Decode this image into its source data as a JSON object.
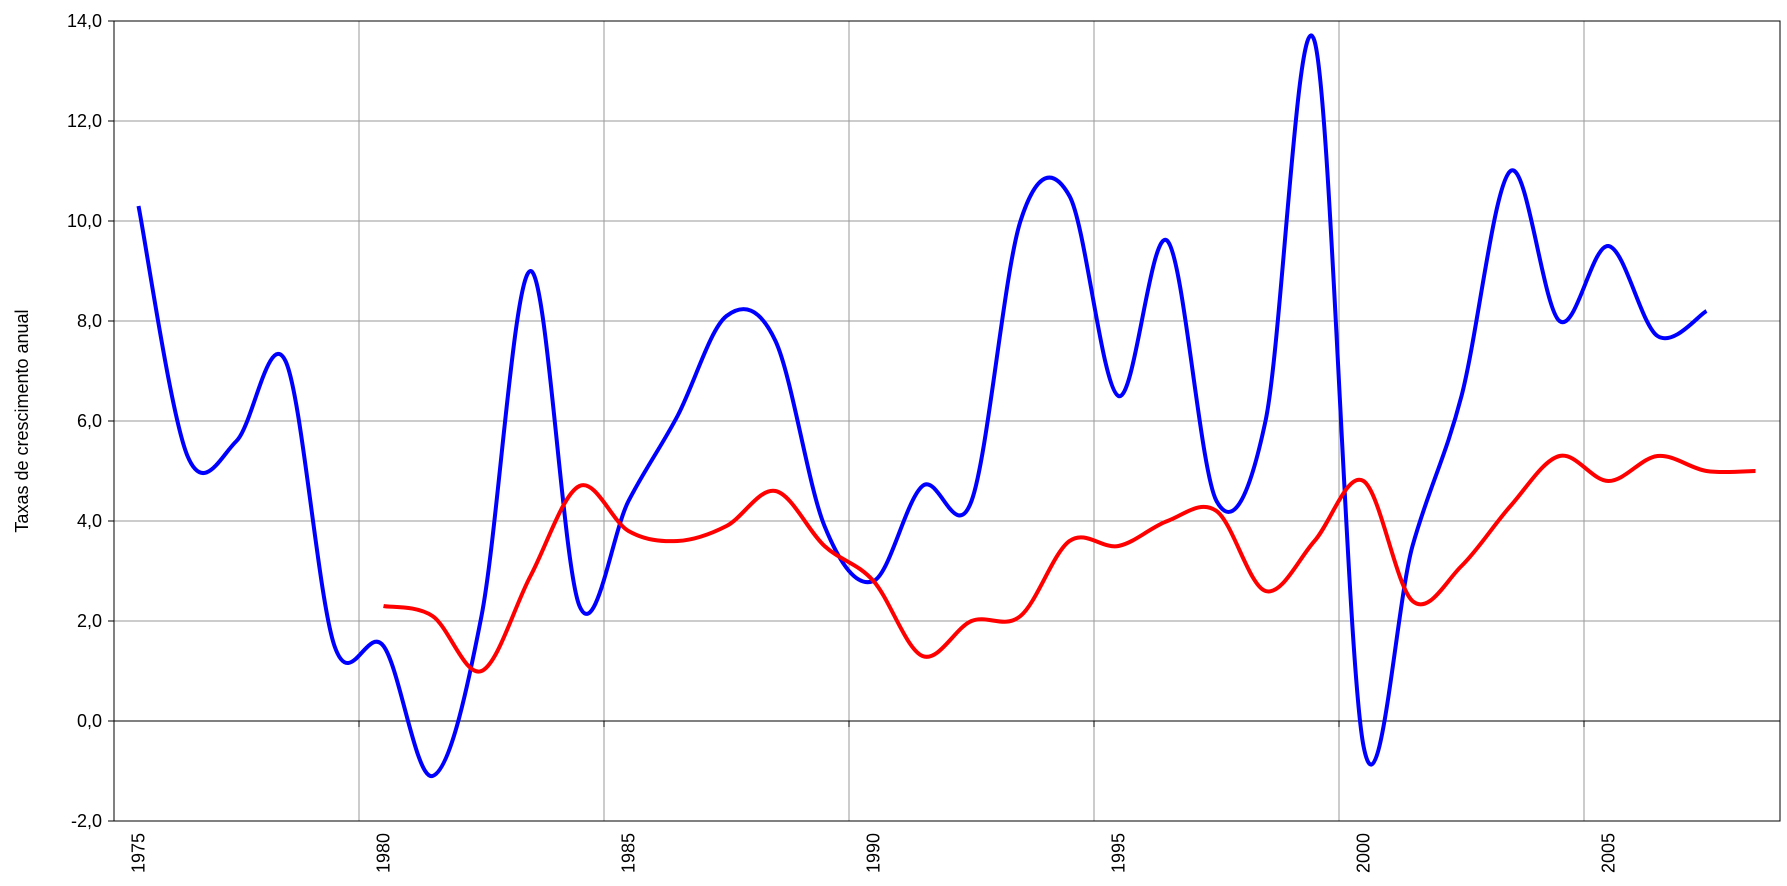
{
  "chart_data": {
    "type": "line",
    "y_label": "Taxas de crescimento anual",
    "categories": [
      "1975",
      null,
      null,
      null,
      null,
      "1980",
      null,
      null,
      null,
      null,
      "1985",
      null,
      null,
      null,
      null,
      "1990",
      null,
      null,
      null,
      null,
      "1995",
      null,
      null,
      null,
      null,
      "2000",
      null,
      null,
      null,
      null,
      "2005",
      null,
      null,
      null
    ],
    "series": [
      {
        "color": "#0000ff",
        "values": [
          10.3,
          5.3,
          5.6,
          7.2,
          1.5,
          1.5,
          -1.1,
          2.1,
          9.0,
          2.3,
          4.4,
          6.1,
          8.1,
          7.6,
          3.9,
          2.8,
          4.7,
          4.4,
          10.0,
          10.5,
          6.5,
          9.6,
          4.4,
          6.0,
          13.6,
          -0.5,
          3.5,
          6.5,
          11.0,
          8.0,
          9.5,
          7.7,
          8.2,
          null
        ]
      },
      {
        "color": "#ff0000",
        "values": [
          null,
          null,
          null,
          null,
          null,
          2.3,
          2.1,
          1.0,
          2.9,
          4.7,
          3.8,
          3.6,
          3.9,
          4.6,
          3.5,
          2.8,
          1.3,
          2.0,
          2.1,
          3.6,
          3.5,
          4.0,
          4.2,
          2.6,
          3.6,
          4.8,
          2.4,
          3.1,
          4.3,
          5.3,
          4.8,
          5.3,
          5.0,
          5.0
        ]
      }
    ],
    "ylim": [
      -2,
      14
    ],
    "yticks": [
      {
        "value": -2,
        "label": "-2,0"
      },
      {
        "value": 0,
        "label": "0,0"
      },
      {
        "value": 2,
        "label": "2,0"
      },
      {
        "value": 4,
        "label": "4,0"
      },
      {
        "value": 6,
        "label": "6,0"
      },
      {
        "value": 8,
        "label": "8,0"
      },
      {
        "value": 10,
        "label": "10,0"
      },
      {
        "value": 12,
        "label": "12,0"
      },
      {
        "value": 14,
        "label": "14,0"
      }
    ],
    "grid": true
  }
}
